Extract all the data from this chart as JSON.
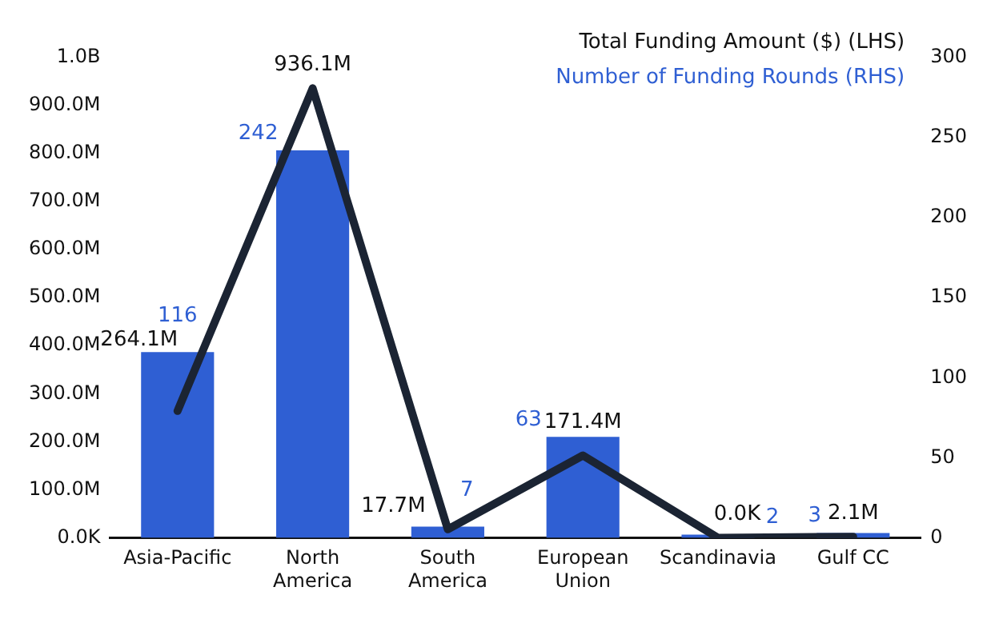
{
  "chart_data": {
    "type": "bar",
    "categories": [
      "Asia-Pacific",
      "North America",
      "South America",
      "European Union",
      "Scandinavia",
      "Gulf CC"
    ],
    "series": [
      {
        "name": "Total Funding Amount ($) (LHS)",
        "type": "line",
        "color": "#1b2433",
        "values": [
          264100000,
          936100000,
          17700000,
          171400000,
          0,
          2100000
        ],
        "value_labels": [
          "264.1M",
          "936.1M",
          "17.7M",
          "171.4M",
          "0.0K",
          "2.1M"
        ]
      },
      {
        "name": "Number of Funding Rounds (RHS)",
        "axis": "y2",
        "color": "#2f5fd3",
        "values": [
          116,
          242,
          7,
          63,
          2,
          3
        ],
        "value_labels": [
          "116",
          "242",
          "7",
          "63",
          "2",
          "3"
        ]
      }
    ],
    "ylim": [
      0,
      1000000000
    ],
    "yticks": [
      {
        "value": 0,
        "label": "0.0K"
      },
      {
        "value": 100000000,
        "label": "100.0M"
      },
      {
        "value": 200000000,
        "label": "200.0M"
      },
      {
        "value": 300000000,
        "label": "300.0M"
      },
      {
        "value": 400000000,
        "label": "400.0M"
      },
      {
        "value": 500000000,
        "label": "500.0M"
      },
      {
        "value": 600000000,
        "label": "600.0M"
      },
      {
        "value": 700000000,
        "label": "700.0M"
      },
      {
        "value": 800000000,
        "label": "800.0M"
      },
      {
        "value": 900000000,
        "label": "900.0M"
      },
      {
        "value": 1000000000,
        "label": "1.0B"
      }
    ],
    "y2lim": [
      0,
      300
    ],
    "y2ticks": [
      0,
      50,
      100,
      150,
      200,
      250,
      300
    ],
    "grid": false,
    "legend": "top right",
    "marker": "none",
    "line_style": "solid"
  }
}
